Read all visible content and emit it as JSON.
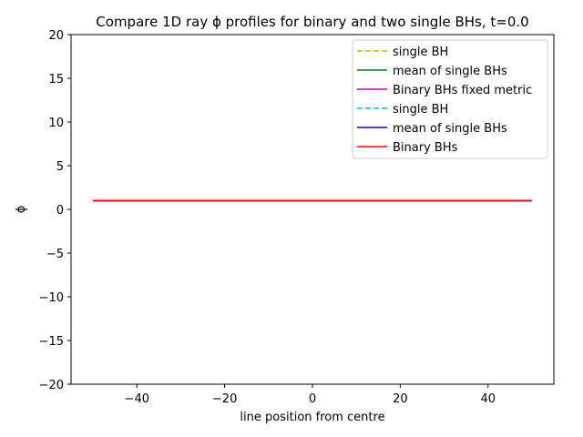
{
  "chart_data": {
    "type": "line",
    "title": "Compare 1D ray ϕ profiles for binary and two single BHs, t=0.0",
    "xlabel": "line position from centre",
    "ylabel": "ϕ",
    "xlim": [
      -55,
      55
    ],
    "ylim": [
      -20,
      20
    ],
    "x_ticks": [
      -40,
      -20,
      0,
      20,
      40
    ],
    "x_tick_labels": [
      "−40",
      "−20",
      "0",
      "20",
      "40"
    ],
    "y_ticks": [
      -20,
      -15,
      -10,
      -5,
      0,
      5,
      10,
      15,
      20
    ],
    "y_tick_labels": [
      "−20",
      "−15",
      "−10",
      "−5",
      "0",
      "5",
      "10",
      "15",
      "20"
    ],
    "grid": false,
    "legend_position": "top-right",
    "series": [
      {
        "name": "single BH",
        "color": "#bfbf00",
        "style": "dashed",
        "x": [
          -50,
          50
        ],
        "y": [
          1,
          1
        ]
      },
      {
        "name": "mean of single BHs",
        "color": "#008000",
        "style": "solid",
        "x": [
          -50,
          50
        ],
        "y": [
          1,
          1
        ]
      },
      {
        "name": "Binary BHs fixed metric",
        "color": "#bf00bf",
        "style": "solid",
        "x": [
          -50,
          50
        ],
        "y": [
          1,
          1
        ]
      },
      {
        "name": "single BH",
        "color": "#00bfbf",
        "style": "dashed",
        "x": [
          -50,
          50
        ],
        "y": [
          1,
          1
        ]
      },
      {
        "name": "mean of single BHs",
        "color": "#0000ff",
        "style": "solid",
        "x": [
          -50,
          50
        ],
        "y": [
          1,
          1
        ]
      },
      {
        "name": "Binary BHs",
        "color": "#ff0000",
        "style": "solid",
        "x": [
          -50,
          50
        ],
        "y": [
          1,
          1
        ]
      }
    ]
  }
}
